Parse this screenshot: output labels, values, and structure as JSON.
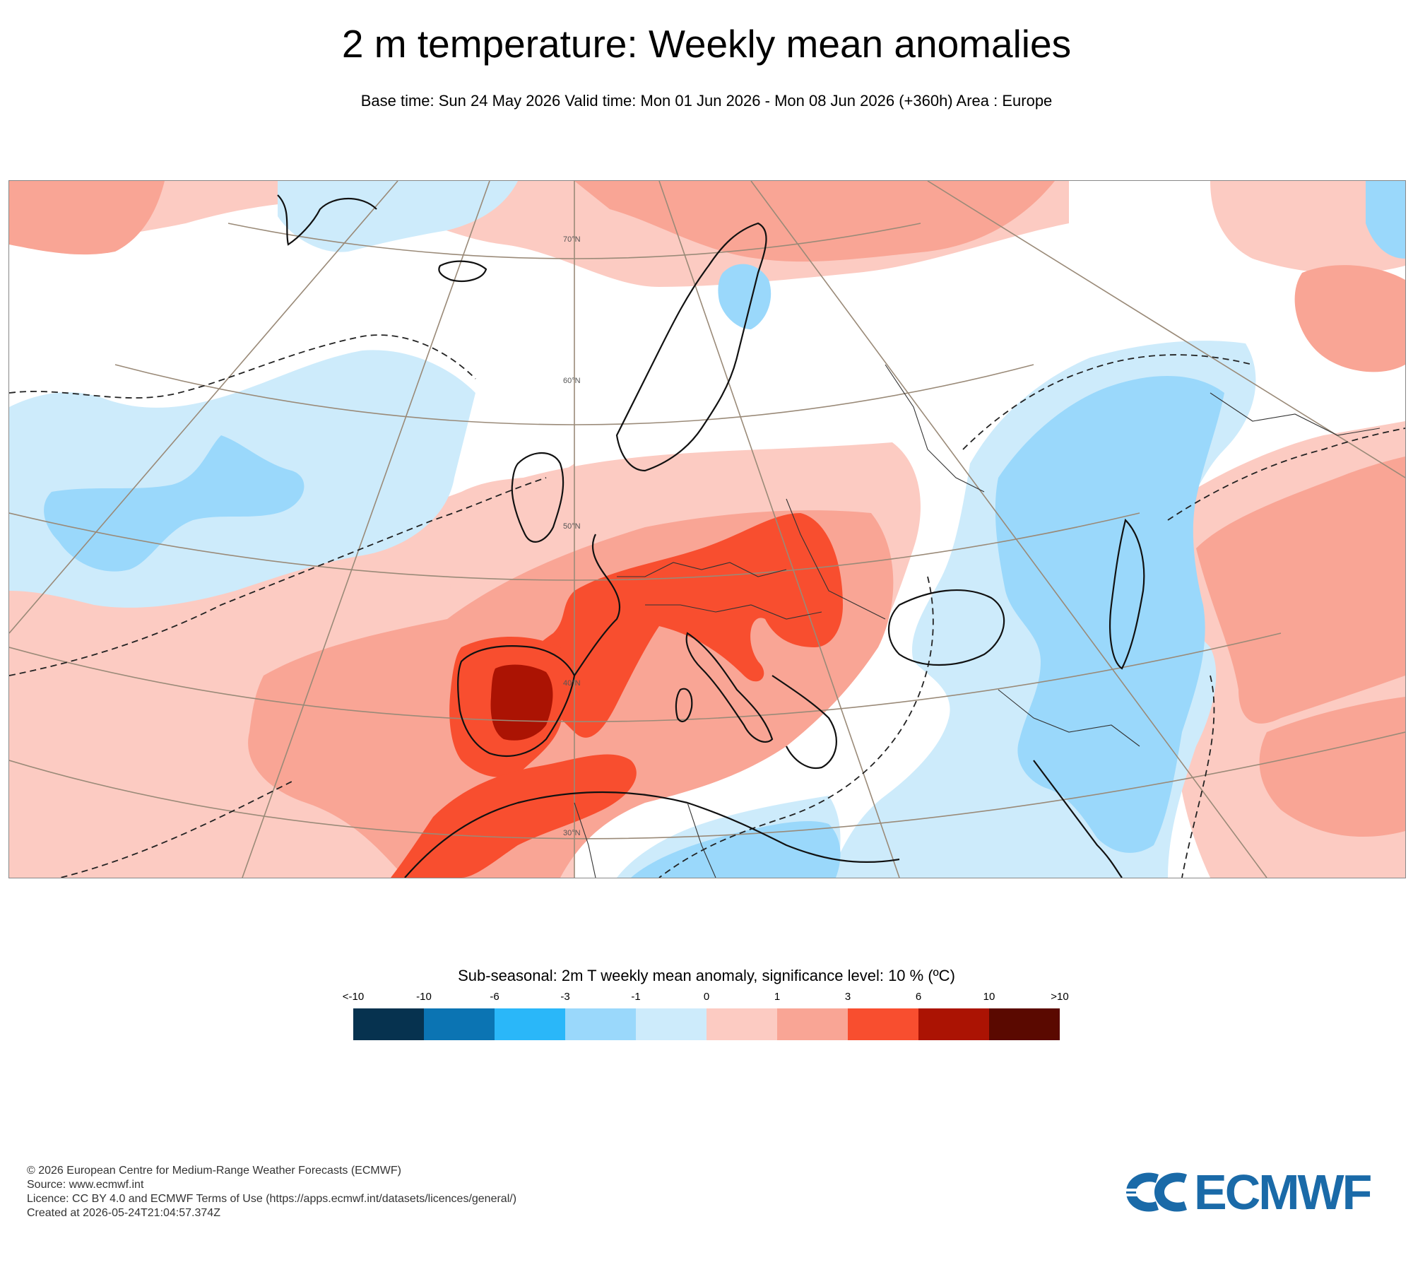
{
  "header": {
    "title": "2 m temperature: Weekly mean anomalies",
    "subtitle": "Base time: Sun 24 May 2026 Valid time: Mon 01 Jun 2026 - Mon 08 Jun 2026 (+360h) Area : Europe"
  },
  "map": {
    "latitude_labels": [
      "70°N",
      "60°N",
      "50°N",
      "40°N",
      "30°N"
    ],
    "colors": {
      "lt-10": "#06324f",
      "-10to-6": "#0b74b3",
      "-6to-3": "#2ab7f9",
      "-3to-1": "#9ad8fb",
      "-1to0": "#cdebfb",
      "0to1": "#fccbc2",
      "1to3": "#f9a595",
      "3to6": "#f84e2f",
      "6to10": "#ab1303",
      "gt10": "#5a0900",
      "neutral": "#ffffff"
    }
  },
  "legend": {
    "title": "Sub-seasonal: 2m T weekly mean anomaly, significance level: 10 % (ºC)",
    "ticks": [
      "<-10",
      "-10",
      "-6",
      "-3",
      "-1",
      "0",
      "1",
      "3",
      "6",
      "10",
      ">10"
    ],
    "colors": [
      "#06324f",
      "#0b74b3",
      "#2ab7f9",
      "#9ad8fb",
      "#cdebfb",
      "#fccbc2",
      "#f9a595",
      "#f84e2f",
      "#ab1303",
      "#5a0900"
    ]
  },
  "footer": {
    "copyright": "© 2026 European Centre for Medium-Range Weather Forecasts (ECMWF)",
    "source": "Source: www.ecmwf.int",
    "licence": "Licence: CC BY 4.0 and ECMWF Terms of Use (https://apps.ecmwf.int/datasets/licences/general/)",
    "created": "Created at 2026-05-24T21:04:57.374Z"
  },
  "logo": {
    "text": "ECMWF",
    "color": "#1a6aa8"
  }
}
